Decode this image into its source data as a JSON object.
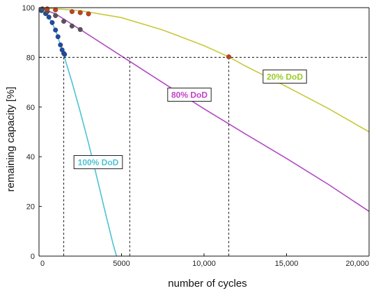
{
  "chart_data": {
    "type": "line",
    "title": "",
    "xlabel": "number of cycles",
    "ylabel": "remaining capacity [%]",
    "xlim": [
      0,
      20000
    ],
    "ylim": [
      0,
      100
    ],
    "x_ticks": [
      0,
      5000,
      10000,
      15000,
      20000
    ],
    "x_tick_labels": [
      "0",
      "5000",
      "10,000",
      "15,000",
      "20,000"
    ],
    "y_ticks": [
      0,
      20,
      40,
      60,
      80,
      100
    ],
    "y_tick_labels": [
      "0",
      "20",
      "40",
      "60",
      "80",
      "100"
    ],
    "grid": false,
    "legend": "none",
    "threshold": 80,
    "series": [
      {
        "label": "100% DoD",
        "color": "#4cc3d4",
        "marker_color": "#1f4aa8",
        "label_color": "#4cc3d4",
        "curve": [
          [
            0,
            100
          ],
          [
            500,
            97.6
          ],
          [
            1000,
            91
          ],
          [
            1500,
            81
          ],
          [
            2000,
            70
          ],
          [
            2500,
            58
          ],
          [
            3000,
            45.5
          ],
          [
            3500,
            32
          ],
          [
            4000,
            18
          ],
          [
            4500,
            4.5
          ],
          [
            4700,
            0
          ]
        ],
        "measured": [
          [
            150,
            98.8
          ],
          [
            400,
            97.6
          ],
          [
            600,
            96.2
          ],
          [
            800,
            94
          ],
          [
            1000,
            91
          ],
          [
            1150,
            88.3
          ],
          [
            1300,
            85
          ],
          [
            1400,
            83
          ],
          [
            1500,
            81.6
          ],
          [
            1550,
            81.2
          ]
        ],
        "eol_cycles": 1500
      },
      {
        "label": "80% DoD",
        "color": "#b249c4",
        "marker_color": "#555555",
        "label_color": "#c33fc8",
        "curve": [
          [
            0,
            100
          ],
          [
            1000,
            97.5
          ],
          [
            2500,
            91.2
          ],
          [
            5000,
            80.5
          ],
          [
            7500,
            69.8
          ],
          [
            10000,
            59.3
          ],
          [
            12500,
            49.2
          ],
          [
            15000,
            39.3
          ],
          [
            17500,
            29
          ],
          [
            20000,
            18
          ]
        ],
        "measured": [
          [
            200,
            99.5
          ],
          [
            500,
            98.4
          ],
          [
            1000,
            96.8
          ],
          [
            1500,
            94.5
          ],
          [
            2000,
            92.6
          ],
          [
            2500,
            91.2
          ]
        ],
        "eol_cycles": 5500
      },
      {
        "label": "20% DoD",
        "color": "#c9c83a",
        "marker_color": "#c8401a",
        "label_color": "#9acb2a",
        "curve": [
          [
            0,
            100
          ],
          [
            2500,
            98.8
          ],
          [
            5000,
            96
          ],
          [
            7500,
            91
          ],
          [
            10000,
            84.7
          ],
          [
            11500,
            80.2
          ],
          [
            12500,
            76.5
          ],
          [
            15000,
            68.2
          ],
          [
            17500,
            59.5
          ],
          [
            20000,
            50
          ]
        ],
        "measured": [
          [
            500,
            99.5
          ],
          [
            1000,
            99.1
          ],
          [
            2000,
            98.4
          ],
          [
            2500,
            98
          ],
          [
            3000,
            97.5
          ],
          [
            11500,
            80.2
          ]
        ],
        "eol_cycles": 11500
      }
    ]
  }
}
